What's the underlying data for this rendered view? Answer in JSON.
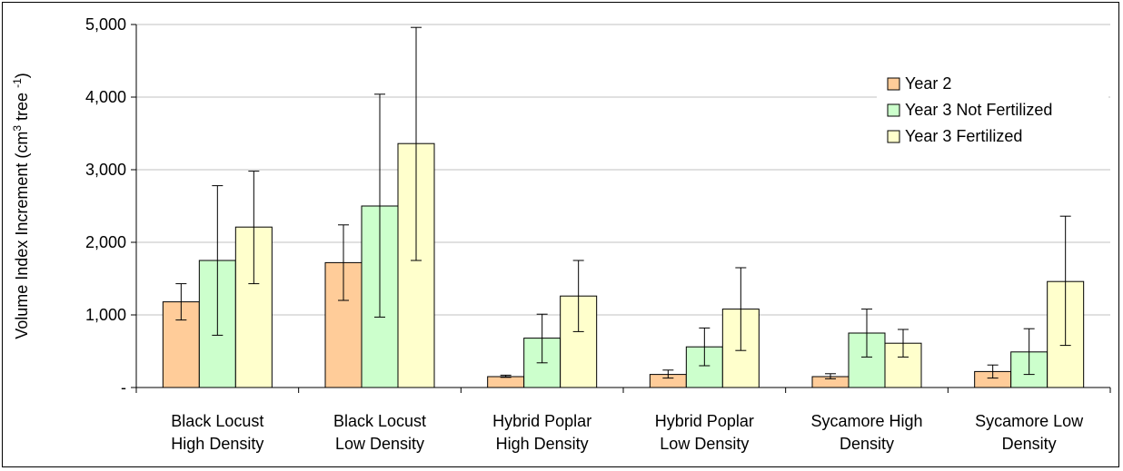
{
  "chart_data": {
    "type": "bar",
    "title": "",
    "xlabel": "",
    "ylabel": "Volume Index Increment (cm3 tree-1)",
    "ylabel_parts": {
      "main": "Volume Index Increment (cm",
      "sup1": "3",
      "mid": " tree ",
      "sup2": "-1",
      "end": ")"
    },
    "ylim": [
      0,
      5000
    ],
    "yticks": [
      0,
      1000,
      2000,
      3000,
      4000,
      5000
    ],
    "ytick_labels": [
      "-",
      "1,000",
      "2,000",
      "3,000",
      "4,000",
      "5,000"
    ],
    "grid": "horizontal",
    "legend_position": "top-right",
    "categories": [
      [
        "Black Locust",
        "High Density"
      ],
      [
        "Black Locust",
        "Low Density"
      ],
      [
        "Hybrid Poplar",
        "High Density"
      ],
      [
        "Hybrid Poplar",
        "Low Density"
      ],
      [
        "Sycamore High",
        "Density"
      ],
      [
        "Sycamore Low",
        "Density"
      ]
    ],
    "series": [
      {
        "name": "Year 2",
        "color": "#FFCC99",
        "values": [
          1180,
          1720,
          150,
          180,
          150,
          220
        ],
        "error": [
          [
            930,
            1430
          ],
          [
            1200,
            2240
          ],
          [
            140,
            170
          ],
          [
            130,
            240
          ],
          [
            120,
            190
          ],
          [
            130,
            310
          ]
        ]
      },
      {
        "name": "Year 3 Not Fertilized",
        "color": "#CCFFCC",
        "values": [
          1750,
          2500,
          680,
          560,
          750,
          490
        ],
        "error": [
          [
            720,
            2780
          ],
          [
            970,
            4040
          ],
          [
            340,
            1010
          ],
          [
            300,
            820
          ],
          [
            420,
            1080
          ],
          [
            180,
            810
          ]
        ]
      },
      {
        "name": "Year 3 Fertilized",
        "color": "#FFFFCC",
        "values": [
          2210,
          3360,
          1260,
          1080,
          610,
          1460
        ],
        "error": [
          [
            1430,
            2980
          ],
          [
            1750,
            4960
          ],
          [
            770,
            1750
          ],
          [
            510,
            1650
          ],
          [
            420,
            800
          ],
          [
            580,
            2360
          ]
        ]
      }
    ]
  }
}
